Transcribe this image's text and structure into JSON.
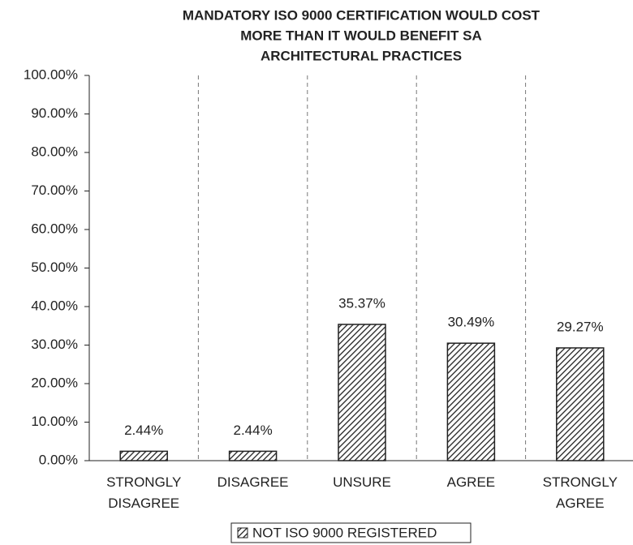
{
  "chart_data": {
    "type": "bar",
    "title": [
      "MANDATORY ISO 9000 CERTIFICATION WOULD COST",
      "MORE THAN IT WOULD BENEFIT SA",
      "ARCHITECTURAL PRACTICES"
    ],
    "categories": [
      "STRONGLY DISAGREE",
      "DISAGREE",
      "UNSURE",
      "AGREE",
      "STRONGLY AGREE"
    ],
    "series": [
      {
        "name": "NOT ISO 9000 REGISTERED",
        "color": "#222222",
        "values": [
          2.44,
          2.44,
          35.37,
          30.49,
          29.27
        ],
        "value_labels": [
          "2.44%",
          "2.44%",
          "35.37%",
          "30.49%",
          "29.27%"
        ]
      }
    ],
    "ylim": [
      0,
      100
    ],
    "yticks": [
      {
        "value": 0,
        "label": "0.00%"
      },
      {
        "value": 10,
        "label": "10.00%"
      },
      {
        "value": 20,
        "label": "20.00%"
      },
      {
        "value": 30,
        "label": "30.00%"
      },
      {
        "value": 40,
        "label": "40.00%"
      },
      {
        "value": 50,
        "label": "50.00%"
      },
      {
        "value": 60,
        "label": "60.00%"
      },
      {
        "value": 70,
        "label": "70.00%"
      },
      {
        "value": 80,
        "label": "80.00%"
      },
      {
        "value": 90,
        "label": "90.00%"
      },
      {
        "value": 100,
        "label": "100.00%"
      }
    ],
    "legend": "bottom"
  }
}
